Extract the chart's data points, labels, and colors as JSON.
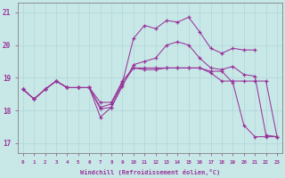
{
  "bg_color": "#c8e8e8",
  "line_color": "#993399",
  "marker": "+",
  "xlabel": "Windchill (Refroidissement éolien,°C)",
  "xmin": -0.5,
  "xmax": 23.5,
  "ymin": 16.7,
  "ymax": 21.3,
  "yticks": [
    17,
    18,
    19,
    20,
    21
  ],
  "xticks": [
    0,
    1,
    2,
    3,
    4,
    5,
    6,
    7,
    8,
    9,
    10,
    11,
    12,
    13,
    14,
    15,
    16,
    17,
    18,
    19,
    20,
    21,
    22,
    23
  ],
  "series": [
    {
      "x": [
        0,
        1,
        2,
        3,
        4,
        5,
        6,
        7,
        8,
        9,
        10,
        11,
        12,
        13,
        14,
        15,
        16,
        17,
        18,
        19,
        20,
        21
      ],
      "y": [
        18.65,
        18.35,
        18.65,
        18.9,
        18.7,
        18.7,
        18.7,
        18.1,
        18.2,
        18.85,
        20.2,
        20.6,
        20.5,
        20.75,
        20.7,
        20.85,
        20.4,
        19.9,
        19.75,
        19.9,
        19.85,
        19.85
      ]
    },
    {
      "x": [
        0,
        1,
        2,
        3,
        4,
        5,
        6,
        7,
        8,
        9,
        10,
        11,
        12,
        13,
        14,
        15,
        16,
        17,
        18,
        19,
        20,
        21,
        22,
        23
      ],
      "y": [
        18.65,
        18.35,
        18.65,
        18.9,
        18.7,
        18.7,
        18.7,
        18.05,
        18.1,
        18.75,
        19.4,
        19.5,
        19.6,
        20.0,
        20.1,
        20.0,
        19.6,
        19.3,
        19.25,
        19.35,
        19.1,
        19.05,
        17.25,
        17.2
      ]
    },
    {
      "x": [
        0,
        1,
        2,
        3,
        4,
        5,
        6,
        7,
        8,
        9,
        10,
        11,
        12,
        13,
        14,
        15,
        16,
        17,
        18,
        19,
        20,
        21,
        22,
        23
      ],
      "y": [
        18.65,
        18.35,
        18.65,
        18.9,
        18.7,
        18.7,
        18.7,
        18.25,
        18.25,
        18.9,
        19.3,
        19.3,
        19.3,
        19.3,
        19.3,
        19.3,
        19.3,
        19.2,
        19.2,
        18.85,
        17.55,
        17.2,
        17.2,
        17.2
      ]
    },
    {
      "x": [
        0,
        1,
        2,
        3,
        4,
        5,
        6,
        7,
        8,
        9,
        10,
        11,
        12,
        13,
        14,
        15,
        16,
        17,
        18,
        19,
        20,
        21,
        22,
        23
      ],
      "y": [
        18.65,
        18.35,
        18.65,
        18.9,
        18.7,
        18.7,
        18.7,
        17.8,
        18.1,
        18.8,
        19.3,
        19.25,
        19.25,
        19.3,
        19.3,
        19.3,
        19.3,
        19.15,
        18.9,
        18.9,
        18.9,
        18.9,
        18.9,
        17.2
      ]
    }
  ]
}
